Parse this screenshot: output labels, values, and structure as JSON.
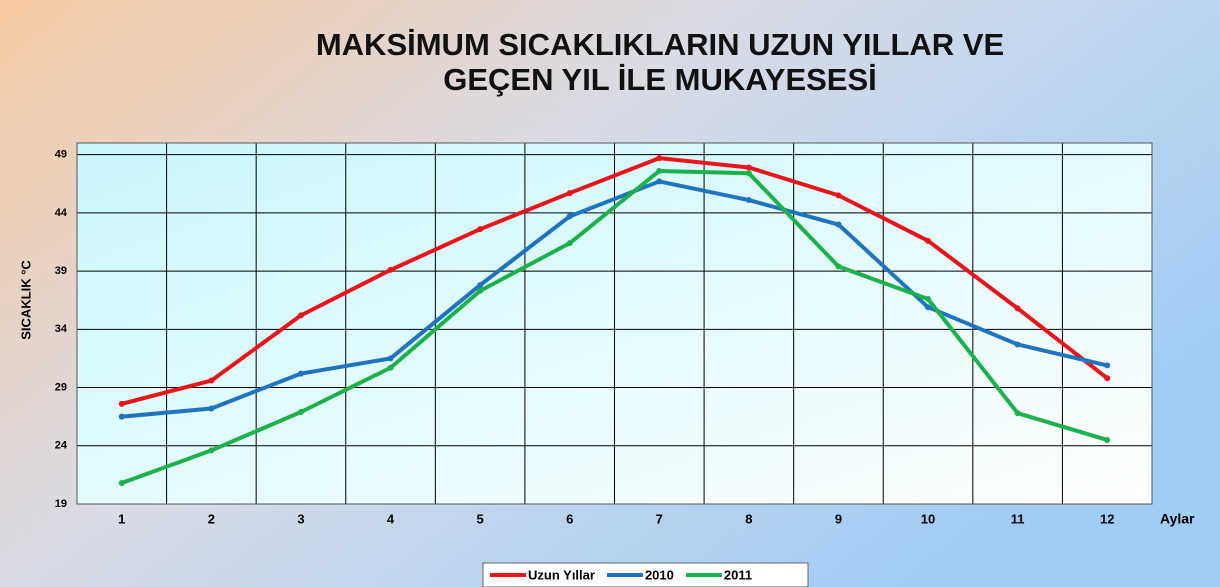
{
  "chart_data": {
    "type": "line",
    "title": [
      "MAKSİMUM SICAKLIKLARIN UZUN YILLAR VE",
      "GEÇEN YIL İLE MUKAYESESİ"
    ],
    "y_label": "SICAKLIK °C",
    "x_label": "Aylar",
    "categories": [
      "1",
      "2",
      "3",
      "4",
      "5",
      "6",
      "7",
      "8",
      "9",
      "10",
      "11",
      "12"
    ],
    "series": [
      {
        "name": "Uzun Yıllar",
        "color": "#e8161b",
        "values": [
          27.6,
          29.6,
          35.2,
          39.1,
          42.6,
          45.7,
          48.7,
          47.9,
          45.5,
          41.6,
          35.8,
          29.8
        ]
      },
      {
        "name": "2010",
        "color": "#1f74bf",
        "values": [
          26.5,
          27.2,
          30.2,
          31.5,
          37.8,
          43.7,
          46.7,
          45.1,
          43.0,
          35.9,
          32.7,
          30.9
        ]
      },
      {
        "name": "2011",
        "color": "#1cb24b",
        "values": [
          20.8,
          23.6,
          26.9,
          30.7,
          37.3,
          41.4,
          47.6,
          47.4,
          39.4,
          36.6,
          26.8,
          24.5
        ]
      }
    ],
    "ylim": [
      19,
      50
    ],
    "yticks": [
      19,
      24,
      29,
      34,
      39,
      44,
      49
    ],
    "grid": true,
    "legend": "bottom"
  }
}
